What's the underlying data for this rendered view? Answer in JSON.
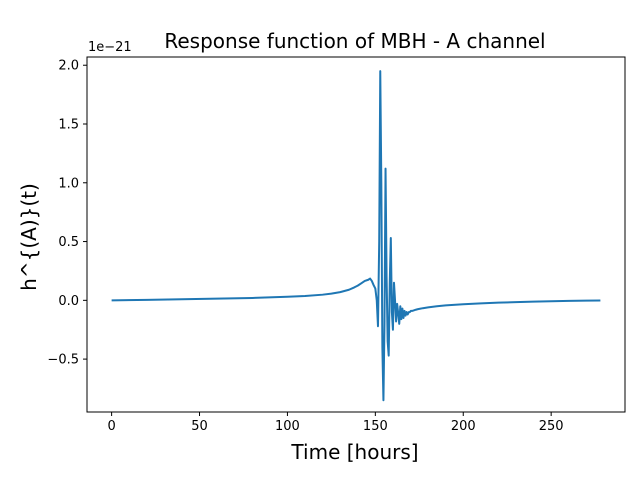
{
  "chart_data": {
    "type": "line",
    "title": "Response function of MBH - A channel",
    "xlabel": "Time [hours]",
    "ylabel": "h^{(A)}(t)",
    "y_offset_label": "1e−21",
    "y_scale": 1e-21,
    "xlim": [
      -14,
      292
    ],
    "ylim": [
      -0.95,
      2.07
    ],
    "x_ticks": [
      0,
      50,
      100,
      150,
      200,
      250
    ],
    "y_ticks": [
      -0.5,
      0.0,
      0.5,
      1.0,
      1.5,
      2.0
    ],
    "y_tick_labels": [
      "−0.5",
      "0.0",
      "0.5",
      "1.0",
      "1.5",
      "2.0"
    ],
    "grid": false,
    "series": [
      {
        "color": "#1f77b4",
        "x": [
          0,
          20,
          40,
          60,
          80,
          100,
          110,
          120,
          125,
          130,
          135,
          138,
          140,
          142,
          144,
          146,
          147,
          148,
          149,
          150,
          150.8,
          151.5,
          152.2,
          152.8,
          153.4,
          154.0,
          154.6,
          155.2,
          155.8,
          156.4,
          157.0,
          157.6,
          158.2,
          158.8,
          159.4,
          160.0,
          160.6,
          161.2,
          161.8,
          162.4,
          163.0,
          163.6,
          164.2,
          164.8,
          165.4,
          166.0,
          166.6,
          167.2,
          167.8,
          168.4,
          169.0,
          169.6,
          170.2,
          171,
          172,
          173,
          174,
          175,
          177,
          180,
          185,
          190,
          200,
          210,
          220,
          230,
          240,
          250,
          260,
          270,
          278
        ],
        "values": [
          0.0,
          0.004,
          0.009,
          0.014,
          0.02,
          0.03,
          0.037,
          0.048,
          0.057,
          0.07,
          0.09,
          0.11,
          0.125,
          0.145,
          0.165,
          0.175,
          0.185,
          0.165,
          0.13,
          0.1,
          0.0,
          -0.22,
          0.5,
          1.95,
          1.0,
          -0.4,
          -0.85,
          -0.2,
          1.12,
          0.2,
          -0.35,
          -0.47,
          0.15,
          0.53,
          -0.1,
          -0.25,
          0.15,
          0.0,
          -0.18,
          -0.03,
          -0.11,
          -0.2,
          -0.05,
          -0.16,
          -0.07,
          -0.15,
          -0.09,
          -0.13,
          -0.1,
          -0.12,
          -0.1,
          -0.1,
          -0.09,
          -0.09,
          -0.085,
          -0.08,
          -0.076,
          -0.073,
          -0.067,
          -0.06,
          -0.05,
          -0.043,
          -0.033,
          -0.026,
          -0.02,
          -0.015,
          -0.011,
          -0.008,
          -0.005,
          -0.003,
          -0.001
        ]
      }
    ]
  }
}
